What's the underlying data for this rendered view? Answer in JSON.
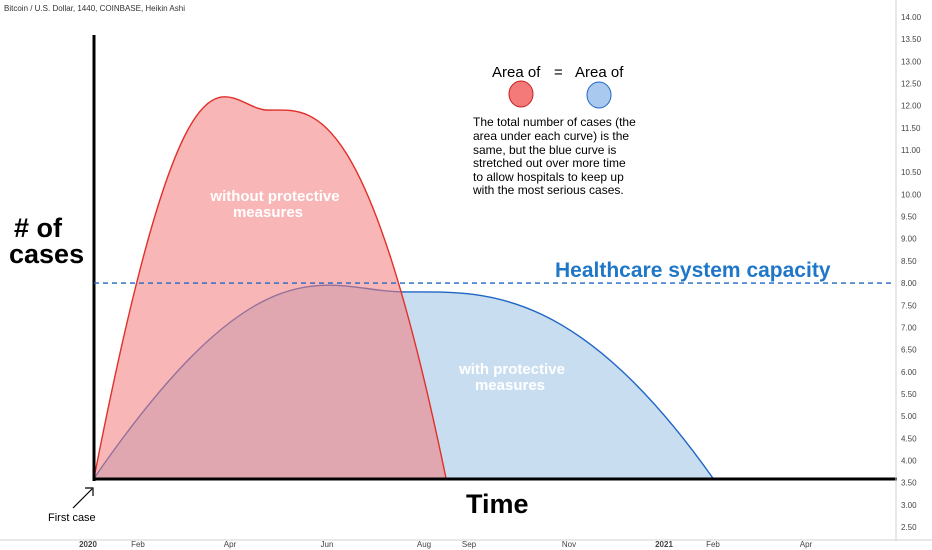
{
  "header": {
    "symbol_line": "Bitcoin / U.S. Dollar, 1440, COINBASE, Heikin Ashi"
  },
  "chart_data": {
    "type": "area",
    "price_axis": {
      "ticks": [
        "14.00",
        "13.50",
        "13.00",
        "12.50",
        "12.00",
        "11.50",
        "11.00",
        "10.50",
        "10.00",
        "9.50",
        "9.00",
        "8.50",
        "8.00",
        "7.50",
        "7.00",
        "6.50",
        "6.00",
        "5.50",
        "5.00",
        "4.50",
        "4.00",
        "3.50",
        "3.00",
        "2.50"
      ],
      "range": [
        2.5,
        14.0
      ]
    },
    "time_axis": {
      "ticks": [
        "2020",
        "Feb",
        "Apr",
        "Jun",
        "Aug",
        "Sep",
        "Nov",
        "2021",
        "Feb",
        "Apr"
      ]
    },
    "ylabel_line1": "# of",
    "ylabel_line2": "cases",
    "xlabel": "Time",
    "origin_label": "First case",
    "capacity_label": "Healthcare system capacity",
    "capacity_level": 8.0,
    "series": [
      {
        "label_line1": "without protective",
        "label_line2": "measures",
        "color": "#e0302a",
        "fill": "#f47a7a",
        "start": "2020",
        "peak_date": "Apr–Jun",
        "end": "Aug",
        "peak": 11.9
      },
      {
        "label_line1": "with protective",
        "label_line2": "measures",
        "color": "#1f66c4",
        "fill": "#9cc1e6",
        "start": "2020",
        "peak_date": "Jul",
        "end": "2021 Feb",
        "peak": 7.8
      }
    ],
    "baseline": 3.6,
    "annotation": {
      "area_text_left": "Area of",
      "equals": "=",
      "area_text_right": "Area of",
      "paragraph": [
        "The total number of cases (the",
        "area under each curve) is the",
        "same, but the blue curve is",
        "stretched out over more time",
        "to allow hospitals to keep up",
        "with the most serious cases."
      ]
    },
    "colors": {
      "axis": "#000000",
      "capacity_line": "#1f66c4",
      "capacity_text": "#1f77c8",
      "label_text": "#ffffff",
      "red_dot": "#f47a7a",
      "blue_dot": "#a9c9ee"
    }
  }
}
